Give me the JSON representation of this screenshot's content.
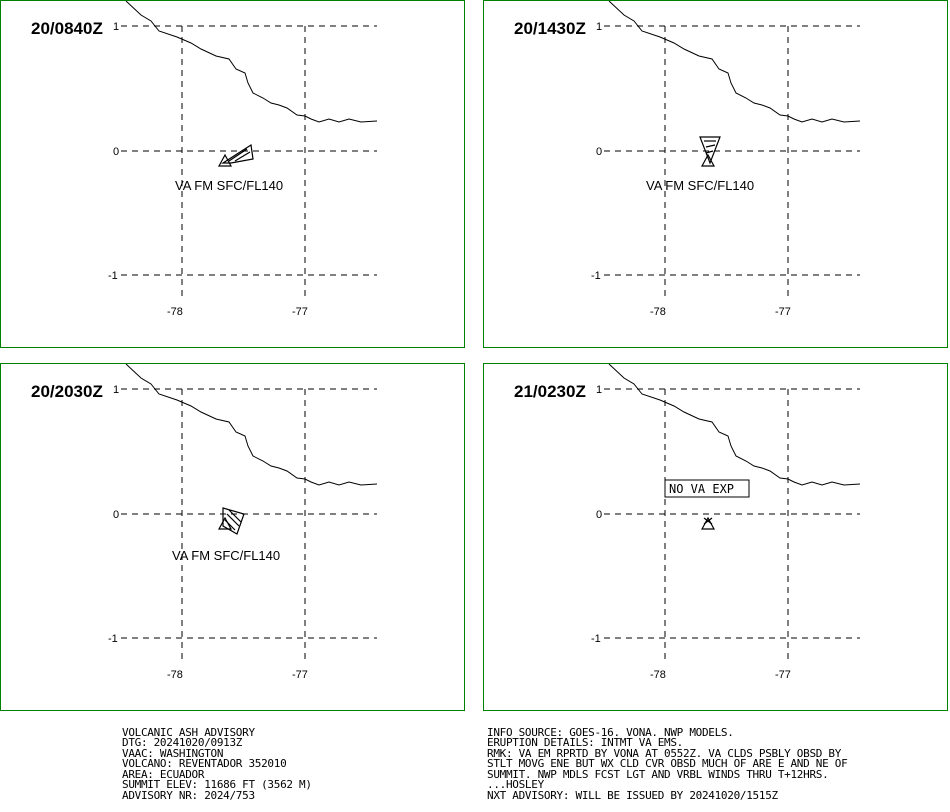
{
  "panels": [
    {
      "time": "20/0840Z",
      "label": "VA FM SFC/FL140",
      "ash": true
    },
    {
      "time": "20/1430Z",
      "label": "VA FM SFC/FL140",
      "ash": true
    },
    {
      "time": "20/2030Z",
      "label": "VA FM SFC/FL140",
      "ash": true
    },
    {
      "time": "21/0230Z",
      "label": "NO VA EXP",
      "ash": false
    }
  ],
  "axes": {
    "lat_labels": [
      "1",
      "0",
      "-1"
    ],
    "lon_labels": [
      "-78",
      "-77"
    ]
  },
  "advisory_left": [
    "VOLCANIC ASH ADVISORY",
    "DTG: 20241020/0913Z",
    "VAAC: WASHINGTON",
    "VOLCANO: REVENTADOR 352010",
    "AREA: ECUADOR",
    "SUMMIT ELEV: 11686 FT (3562 M)",
    "ADVISORY NR: 2024/753"
  ],
  "advisory_right": [
    "INFO SOURCE: GOES-16. VONA. NWP MODELS.",
    "ERUPTION DETAILS: INTMT VA EMS.",
    "RMK: VA EM RPRTD BY VONA AT 0552Z. VA CLDS PSBLY OBSD BY",
    "STLT MOVG ENE BUT WX CLD CVR OBSD MUCH OF ARE E AND NE OF",
    "SUMMIT. NWP MDLS FCST LGT AND VRBL WINDS THRU T+12HRS.",
    "...HOSLEY",
    "NXT ADVISORY: WILL BE ISSUED BY 20241020/1515Z"
  ],
  "colors": {
    "border": "#008000",
    "lines": "#000000"
  }
}
